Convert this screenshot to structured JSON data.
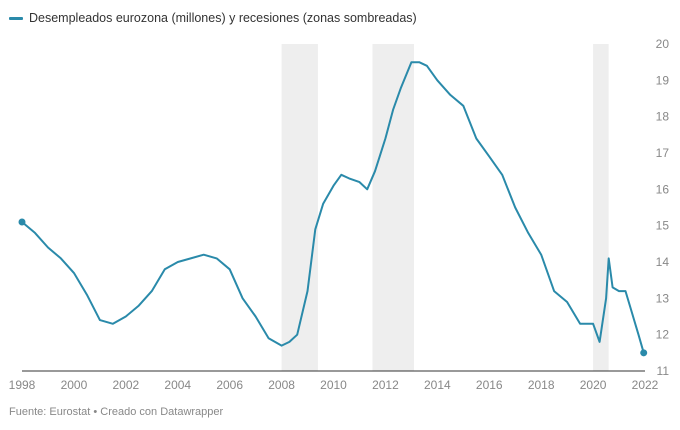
{
  "colors": {
    "line": "#2a8aaa",
    "recession": "#eeeeee",
    "gridline": "#e6e6e6",
    "baseline": "#333333"
  },
  "footer": {
    "source": "Fuente: Eurostat • Creado con Datawrapper"
  },
  "chart_data": {
    "type": "line",
    "title": "",
    "legend": {
      "position": "top-left"
    },
    "xlabel": "",
    "ylabel": "",
    "xlim": [
      1998,
      2022
    ],
    "ylim": [
      11,
      20
    ],
    "y_axis_side": "right",
    "grid": {
      "x": false,
      "y": false
    },
    "x_ticks": [
      "1998",
      "2000",
      "2002",
      "2004",
      "2006",
      "2008",
      "2010",
      "2012",
      "2014",
      "2016",
      "2018",
      "2020",
      "2022"
    ],
    "y_ticks": [
      "11",
      "12",
      "13",
      "14",
      "15",
      "16",
      "17",
      "18",
      "19",
      "20"
    ],
    "recessions": [
      {
        "start": 2008.0,
        "end": 2009.4
      },
      {
        "start": 2011.5,
        "end": 2013.1
      },
      {
        "start": 2020.0,
        "end": 2020.6
      }
    ],
    "series": [
      {
        "name": "Desempleados eurozona (millones) y recesiones (zonas sombreadas)",
        "endpoints": true,
        "x": [
          1998.0,
          1998.5,
          1999.0,
          1999.5,
          2000.0,
          2000.5,
          2001.0,
          2001.5,
          2002.0,
          2002.5,
          2003.0,
          2003.5,
          2004.0,
          2004.5,
          2005.0,
          2005.5,
          2006.0,
          2006.5,
          2007.0,
          2007.5,
          2008.0,
          2008.3,
          2008.6,
          2009.0,
          2009.3,
          2009.6,
          2010.0,
          2010.3,
          2010.6,
          2011.0,
          2011.3,
          2011.6,
          2012.0,
          2012.3,
          2012.6,
          2013.0,
          2013.3,
          2013.6,
          2014.0,
          2014.5,
          2015.0,
          2015.5,
          2016.0,
          2016.5,
          2017.0,
          2017.5,
          2018.0,
          2018.5,
          2019.0,
          2019.5,
          2020.0,
          2020.25,
          2020.5,
          2020.6,
          2020.75,
          2021.0,
          2021.25,
          2021.5,
          2021.75,
          2021.95
        ],
        "y": [
          15.1,
          14.8,
          14.4,
          14.1,
          13.7,
          13.1,
          12.4,
          12.3,
          12.5,
          12.8,
          13.2,
          13.8,
          14.0,
          14.1,
          14.2,
          14.1,
          13.8,
          13.0,
          12.5,
          11.9,
          11.7,
          11.8,
          12.0,
          13.2,
          14.9,
          15.6,
          16.1,
          16.4,
          16.3,
          16.2,
          16.0,
          16.5,
          17.4,
          18.2,
          18.8,
          19.5,
          19.5,
          19.4,
          19.0,
          18.6,
          18.3,
          17.4,
          16.9,
          16.4,
          15.5,
          14.8,
          14.2,
          13.2,
          12.9,
          12.3,
          12.3,
          11.8,
          13.0,
          14.1,
          13.3,
          13.2,
          13.2,
          12.6,
          12.0,
          11.5
        ]
      }
    ]
  }
}
